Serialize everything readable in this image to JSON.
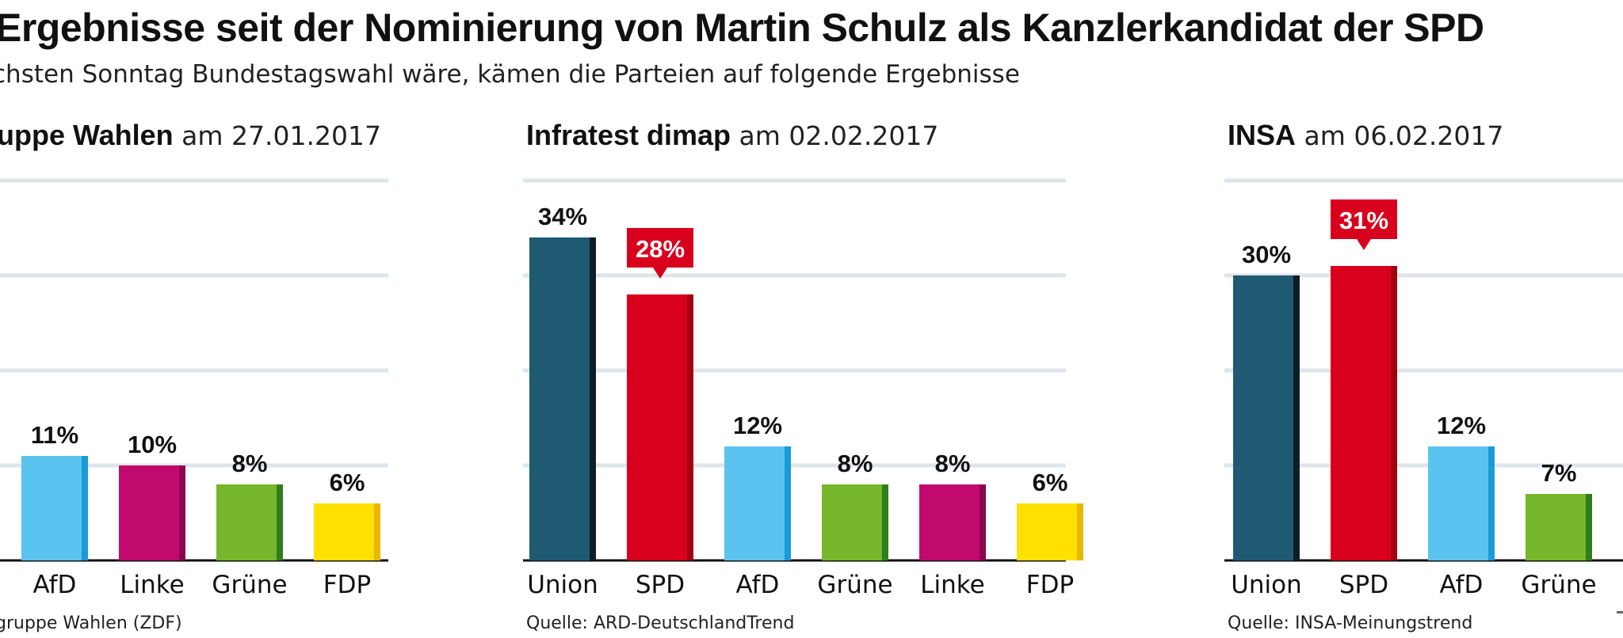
{
  "title": "Ergebnisse seit der Nominierung von Martin Schulz als Kanzlerkandidat der SPD",
  "subtitle": "chsten Sonntag Bundestagswahl wäre, kämen die Parteien auf folgende Ergebnisse",
  "colors": {
    "Union": "#1f5a73",
    "SPD": "#d8001c",
    "AfD": "#5bc3ef",
    "Linke": "#c20a6e",
    "Grüne": "#76b62b",
    "FDP": "#ffe000",
    "highlight_bg": "#d8001c",
    "grid": "#dfe5ea"
  },
  "chart_data": [
    {
      "type": "bar",
      "pollster": "uppe Wahlen",
      "date_text": "am 27.01.2017",
      "categories": [
        "AfD",
        "Linke",
        "Grüne",
        "FDP"
      ],
      "values": [
        11,
        10,
        8,
        6
      ],
      "value_labels": [
        "11%",
        "10%",
        "8%",
        "6%"
      ],
      "highlight": null,
      "ylim": [
        0,
        40
      ],
      "grid": true,
      "source": "gruppe Wahlen (ZDF)"
    },
    {
      "type": "bar",
      "pollster": "Infratest dimap",
      "date_text": "am 02.02.2017",
      "categories": [
        "Union",
        "SPD",
        "AfD",
        "Grüne",
        "Linke",
        "FDP"
      ],
      "values": [
        34,
        28,
        12,
        8,
        8,
        6
      ],
      "value_labels": [
        "34%",
        "28%",
        "12%",
        "8%",
        "8%",
        "6%"
      ],
      "highlight": "SPD",
      "ylim": [
        0,
        40
      ],
      "grid": true,
      "source": "Quelle: ARD-DeutschlandTrend"
    },
    {
      "type": "bar",
      "pollster": "INSA",
      "date_text": "am 06.02.2017",
      "categories": [
        "Union",
        "SPD",
        "AfD",
        "Grüne"
      ],
      "values": [
        30,
        31,
        12,
        7
      ],
      "value_labels": [
        "30%",
        "31%",
        "12%",
        "7%"
      ],
      "highlight": "SPD",
      "ylim": [
        0,
        40
      ],
      "grid": true,
      "source": "Quelle: INSA-Meinungstrend"
    }
  ]
}
